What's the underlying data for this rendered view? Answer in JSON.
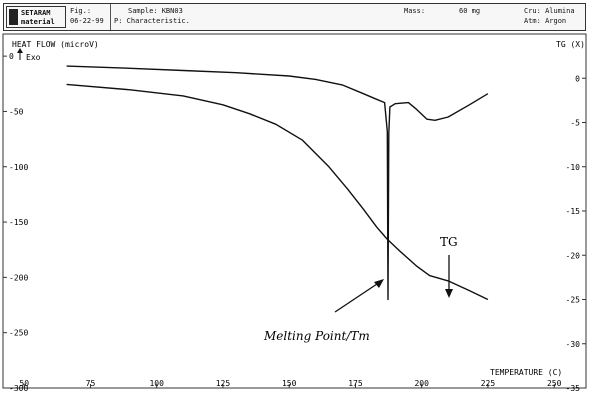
{
  "header": {
    "brand_line1": "SETARAM",
    "brand_line2": "material",
    "fig_label": "Fig.:",
    "date": "06-22-99",
    "sample": "Sample: KBN03",
    "procedure": "P: Characteristic.",
    "mass": "Mass:",
    "mass_value": "60 mg",
    "crucible": "Cru: Alumina",
    "atmosphere": "Atm: Argon"
  },
  "chart_data": {
    "type": "line",
    "title": "",
    "xlabel": "TEMPERATURE (C)",
    "ylabel": "HEAT FLOW (microV)",
    "y2label": "TG (X)",
    "exo_label": "Exo",
    "xlim": [
      42,
      262
    ],
    "ylim": [
      -300,
      20
    ],
    "y2lim": [
      -35,
      5
    ],
    "x_ticks": [
      50,
      75,
      100,
      125,
      150,
      175,
      200,
      225,
      250
    ],
    "x_tick_labels": [
      "50",
      "75",
      "100",
      "125",
      "150",
      "175",
      "200",
      "225",
      "250"
    ],
    "y_ticks": [
      0,
      -50,
      -100,
      -150,
      -200,
      -250,
      -300
    ],
    "y_tick_labels": [
      "0",
      "-50",
      "-100",
      "-150",
      "-200",
      "-250",
      "-300"
    ],
    "y2_ticks": [
      0,
      -5,
      -10,
      -15,
      -20,
      -25,
      -30,
      -35
    ],
    "y2_tick_labels": [
      "0",
      "-5",
      "-10",
      "-15",
      "-20",
      "-25",
      "-30",
      "-35"
    ],
    "grid": false,
    "series": [
      {
        "axis": "left",
        "x": [
          66,
          90,
          110,
          130,
          150,
          160,
          170,
          178,
          183,
          186,
          187,
          187.3,
          187.6,
          188,
          190,
          195,
          198,
          202,
          205,
          210,
          218,
          225
        ],
        "y": [
          -9,
          -11,
          -13,
          -15,
          -18,
          -21,
          -26,
          -34,
          -39,
          -42,
          -68,
          -220,
          -70,
          -46,
          -43,
          -42,
          -48,
          -57,
          -58,
          -55,
          -44,
          -34
        ]
      },
      {
        "axis": "right",
        "x": [
          66,
          90,
          110,
          125,
          135,
          145,
          155,
          165,
          172,
          178,
          183,
          187,
          192,
          198,
          203,
          210,
          218,
          225
        ],
        "y": [
          -0.7,
          -1.3,
          -2.0,
          -3.0,
          -4.0,
          -5.2,
          -7.0,
          -10.0,
          -12.5,
          -14.8,
          -16.8,
          -18.2,
          -19.6,
          -21.2,
          -22.3,
          -22.9,
          -24.0,
          -25.0
        ]
      }
    ],
    "annotations": [
      {
        "text": "Melting Point/Tm",
        "x": 157,
        "y": -253
      },
      {
        "text": "TG",
        "x": 213,
        "y": -175
      }
    ]
  }
}
